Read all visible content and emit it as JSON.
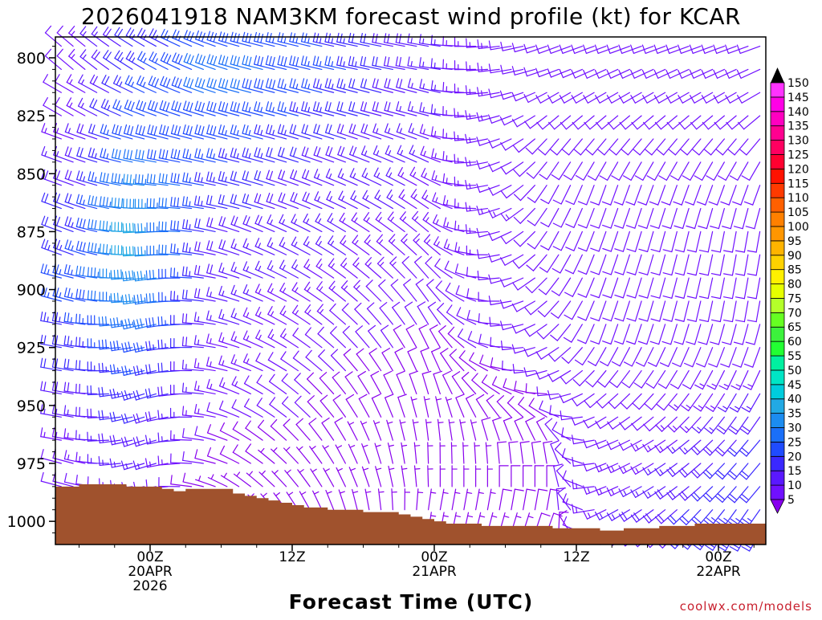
{
  "chart_data": {
    "type": "wind_profile",
    "title": "2026041918 NAM3KM forecast wind profile (kt) for KCAR",
    "xlabel": "Forecast Time (UTC)",
    "ylabel": "",
    "credit": "coolwx.com/models",
    "y_axis": {
      "unit": "hPa",
      "range": [
        1010,
        791
      ],
      "ticks": [
        800,
        825,
        850,
        875,
        900,
        925,
        950,
        975,
        1000
      ]
    },
    "x_axis": {
      "unit": "hours since 2026041918",
      "range": [
        -2,
        58
      ],
      "ticks": [
        {
          "hour": 6,
          "lines": [
            "00Z",
            "20APR",
            "2026"
          ]
        },
        {
          "hour": 18,
          "lines": [
            "12Z"
          ]
        },
        {
          "hour": 30,
          "lines": [
            "00Z",
            "21APR"
          ]
        },
        {
          "hour": 42,
          "lines": [
            "12Z"
          ]
        },
        {
          "hour": 54,
          "lines": [
            "00Z",
            "22APR"
          ]
        }
      ]
    },
    "levels_hpa": [
      795,
      805,
      815,
      825,
      835,
      845,
      855,
      865,
      875,
      885,
      895,
      905,
      915,
      925,
      935,
      945,
      955,
      965,
      975,
      985,
      995,
      1005
    ],
    "speed_keyframes": [
      {
        "hour": 0,
        "kt": [
          12,
          12,
          12,
          12,
          14,
          16,
          18,
          20,
          22,
          24,
          26,
          26,
          24,
          22,
          20,
          18,
          16,
          14,
          12,
          10,
          8,
          6
        ]
      },
      {
        "hour": 5,
        "kt": [
          22,
          24,
          26,
          28,
          30,
          32,
          36,
          40,
          42,
          42,
          40,
          38,
          34,
          30,
          26,
          24,
          22,
          20,
          18,
          14,
          10,
          8
        ]
      },
      {
        "hour": 12,
        "kt": [
          30,
          32,
          32,
          30,
          28,
          26,
          24,
          22,
          20,
          18,
          18,
          16,
          16,
          15,
          14,
          14,
          12,
          10,
          8,
          6,
          5,
          5
        ]
      },
      {
        "hour": 20,
        "kt": [
          26,
          28,
          26,
          24,
          22,
          20,
          18,
          18,
          16,
          16,
          15,
          14,
          13,
          12,
          11,
          10,
          10,
          8,
          7,
          5,
          5,
          5
        ]
      },
      {
        "hour": 30,
        "kt": [
          16,
          16,
          16,
          16,
          15,
          15,
          14,
          14,
          13,
          13,
          12,
          11,
          10,
          9,
          8,
          8,
          7,
          6,
          5,
          5,
          5,
          5
        ]
      },
      {
        "hour": 40,
        "kt": [
          10,
          10,
          10,
          10,
          10,
          10,
          11,
          12,
          12,
          12,
          12,
          12,
          12,
          12,
          11,
          10,
          10,
          10,
          10,
          10,
          10,
          8
        ]
      },
      {
        "hour": 48,
        "kt": [
          10,
          10,
          10,
          10,
          10,
          10,
          10,
          10,
          10,
          10,
          10,
          10,
          10,
          10,
          10,
          10,
          10,
          12,
          14,
          16,
          18,
          18
        ]
      },
      {
        "hour": 56,
        "kt": [
          10,
          10,
          10,
          10,
          10,
          10,
          10,
          10,
          10,
          10,
          10,
          10,
          10,
          12,
          14,
          16,
          18,
          20,
          22,
          22,
          24,
          24
        ]
      }
    ],
    "direction_keyframes": [
      {
        "hour": 0,
        "deg": [
          310,
          310,
          300,
          300,
          290,
          290,
          290,
          290,
          290,
          290,
          285,
          285,
          280,
          280,
          280,
          280,
          280,
          280,
          285,
          285,
          290,
          290
        ]
      },
      {
        "hour": 6,
        "deg": [
          300,
          300,
          295,
          290,
          285,
          280,
          275,
          270,
          265,
          265,
          260,
          260,
          255,
          255,
          255,
          250,
          250,
          250,
          250,
          255,
          260,
          260
        ]
      },
      {
        "hour": 14,
        "deg": [
          285,
          285,
          285,
          285,
          285,
          285,
          285,
          285,
          290,
          290,
          290,
          290,
          290,
          290,
          290,
          295,
          295,
          300,
          300,
          305,
          310,
          310
        ]
      },
      {
        "hour": 30,
        "deg": [
          280,
          280,
          285,
          285,
          290,
          295,
          300,
          305,
          310,
          315,
          320,
          325,
          330,
          335,
          340,
          345,
          350,
          355,
          360,
          360,
          10,
          10
        ]
      },
      {
        "hour": 40,
        "deg": [
          250,
          250,
          240,
          230,
          220,
          215,
          210,
          210,
          210,
          215,
          220,
          225,
          230,
          240,
          250,
          270,
          300,
          330,
          350,
          360,
          10,
          20
        ]
      },
      {
        "hour": 44,
        "deg": [
          250,
          245,
          240,
          230,
          220,
          210,
          200,
          200,
          200,
          200,
          200,
          200,
          200,
          210,
          220,
          230,
          240,
          250,
          250,
          250,
          245,
          240
        ]
      },
      {
        "hour": 56,
        "deg": [
          250,
          245,
          240,
          230,
          220,
          210,
          200,
          195,
          190,
          190,
          190,
          190,
          195,
          200,
          205,
          210,
          215,
          220,
          220,
          220,
          215,
          210
        ]
      }
    ],
    "surface_pressure": [
      {
        "hour": -2,
        "hpa": 985
      },
      {
        "hour": 0,
        "hpa": 984
      },
      {
        "hour": 1,
        "hpa": 984
      },
      {
        "hour": 4,
        "hpa": 985
      },
      {
        "hour": 6,
        "hpa": 985
      },
      {
        "hour": 7,
        "hpa": 986
      },
      {
        "hour": 8,
        "hpa": 987
      },
      {
        "hour": 9,
        "hpa": 986
      },
      {
        "hour": 12,
        "hpa": 986
      },
      {
        "hour": 13,
        "hpa": 988
      },
      {
        "hour": 14,
        "hpa": 989
      },
      {
        "hour": 15,
        "hpa": 990
      },
      {
        "hour": 16,
        "hpa": 991
      },
      {
        "hour": 17,
        "hpa": 992
      },
      {
        "hour": 18,
        "hpa": 993
      },
      {
        "hour": 19,
        "hpa": 994
      },
      {
        "hour": 21,
        "hpa": 995
      },
      {
        "hour": 24,
        "hpa": 996
      },
      {
        "hour": 27,
        "hpa": 997
      },
      {
        "hour": 28,
        "hpa": 998
      },
      {
        "hour": 29,
        "hpa": 999
      },
      {
        "hour": 30,
        "hpa": 1000
      },
      {
        "hour": 31,
        "hpa": 1001
      },
      {
        "hour": 34,
        "hpa": 1002
      },
      {
        "hour": 37,
        "hpa": 1002
      },
      {
        "hour": 40,
        "hpa": 1003
      },
      {
        "hour": 44,
        "hpa": 1004
      },
      {
        "hour": 46,
        "hpa": 1003
      },
      {
        "hour": 49,
        "hpa": 1002
      },
      {
        "hour": 52,
        "hpa": 1001
      },
      {
        "hour": 58,
        "hpa": 1001
      }
    ],
    "colorbar": {
      "unit": "kt",
      "labels": [
        5,
        10,
        15,
        20,
        25,
        30,
        35,
        40,
        45,
        50,
        55,
        60,
        65,
        70,
        75,
        80,
        85,
        90,
        95,
        100,
        105,
        110,
        115,
        120,
        125,
        130,
        135,
        140,
        145,
        150
      ],
      "colors": [
        "#8800ee",
        "#7010ff",
        "#5a18ff",
        "#3a28ff",
        "#1f4bff",
        "#1a6ff8",
        "#1c8cf0",
        "#22a9e4",
        "#00ccdd",
        "#00e5c5",
        "#00f0a0",
        "#22ff33",
        "#3cf23c",
        "#66ff22",
        "#b4ff2a",
        "#e6ff00",
        "#fff000",
        "#ffd200",
        "#ffb400",
        "#ff9600",
        "#ff8000",
        "#ff6000",
        "#ff3a00",
        "#ff1200",
        "#ff0030",
        "#ff0060",
        "#ff0090",
        "#ff00c0",
        "#ff00e6",
        "#ff33ff"
      ]
    },
    "colors": {
      "terrain": "#a0522d",
      "frame": "#000000",
      "credit": "#c8202e"
    }
  }
}
